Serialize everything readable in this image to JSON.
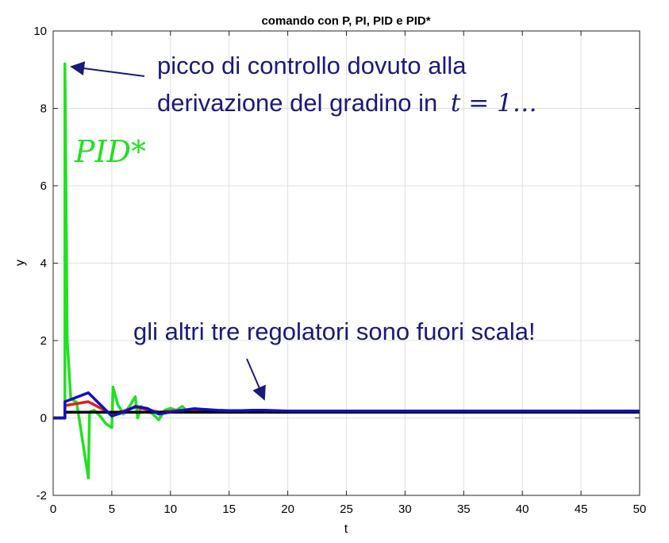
{
  "chart_data": {
    "type": "line",
    "title": "comando con P, PI, PID e PID*",
    "xlabel": "t",
    "ylabel": "y",
    "xlim": [
      0,
      50
    ],
    "ylim": [
      -2,
      10
    ],
    "xticks": [
      0,
      5,
      10,
      15,
      20,
      25,
      30,
      35,
      40,
      45,
      50
    ],
    "yticks": [
      -2,
      0,
      2,
      4,
      6,
      8,
      10
    ],
    "grid": true,
    "series": [
      {
        "color": "#22e022",
        "x": [
          0,
          1,
          1,
          1.2,
          1.5,
          2,
          3,
          3.1,
          3.5,
          4,
          4.5,
          5,
          5.1,
          5.5,
          6,
          6.5,
          7,
          7.2,
          7.5,
          8,
          8.5,
          9,
          9.5,
          10,
          10.5,
          11,
          11.5,
          12,
          13,
          14,
          15,
          16,
          17,
          18,
          20,
          25,
          30,
          35,
          40,
          45,
          50
        ],
        "y": [
          0,
          0,
          9.15,
          2.0,
          0.5,
          0.4,
          -1.55,
          0.15,
          0.2,
          0.05,
          -0.15,
          -0.25,
          0.8,
          0.35,
          0.1,
          0.3,
          0.55,
          0.0,
          0.3,
          0.2,
          0.1,
          -0.05,
          0.2,
          0.25,
          0.2,
          0.3,
          0.15,
          0.2,
          0.18,
          0.17,
          0.17,
          0.18,
          0.17,
          0.17,
          0.17,
          0.17,
          0.17,
          0.17,
          0.17,
          0.17,
          0.17
        ]
      },
      {
        "color": "#e02020",
        "x": [
          0,
          1,
          1,
          3,
          5,
          6,
          7,
          8,
          9,
          10,
          11,
          12,
          14,
          16,
          18,
          20,
          25,
          30,
          40,
          50
        ],
        "y": [
          0,
          0,
          0.32,
          0.42,
          0.1,
          0.18,
          0.28,
          0.22,
          0.15,
          0.18,
          0.2,
          0.18,
          0.18,
          0.18,
          0.18,
          0.17,
          0.17,
          0.17,
          0.17,
          0.17
        ]
      },
      {
        "color": "#000000",
        "x": [
          0,
          1,
          1,
          50
        ],
        "y": [
          0,
          0,
          0.15,
          0.15
        ]
      },
      {
        "color": "#1010c0",
        "x": [
          0,
          1,
          1,
          3,
          5,
          6,
          7,
          8,
          9,
          10,
          11,
          12,
          13,
          14,
          15,
          16,
          17,
          18,
          20,
          25,
          30,
          35,
          40,
          45,
          50
        ],
        "y": [
          0,
          0,
          0.42,
          0.65,
          0.05,
          0.15,
          0.3,
          0.25,
          0.1,
          0.15,
          0.2,
          0.24,
          0.22,
          0.2,
          0.19,
          0.19,
          0.2,
          0.2,
          0.18,
          0.18,
          0.18,
          0.18,
          0.18,
          0.18,
          0.18
        ]
      }
    ],
    "annotations": {
      "peak_line1": "picco di controllo dovuto alla",
      "peak_line2": "derivazione del gradino in",
      "peak_math": "t = 1…",
      "pid_label": "PID*",
      "others": "gli altri tre regolatori sono fuori scala!"
    }
  },
  "colors": {
    "annotation": "#1a1a7a",
    "grid": "#e0e0e0",
    "pid_star": "#22e022"
  }
}
